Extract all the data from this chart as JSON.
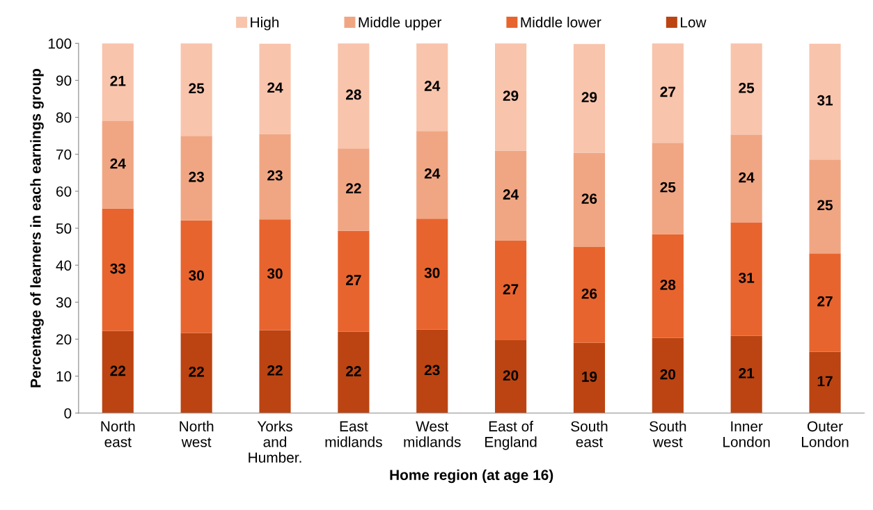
{
  "chart_data": {
    "type": "bar",
    "stacked": true,
    "xlabel": "Home region (at age 16)",
    "ylabel": "Percentage of learners in each earnings group",
    "categories": [
      "North\neast",
      "North\nwest",
      "Yorks\nand\nHumber.",
      "East\nmidlands",
      "West\nmidlands",
      "East of\nEngland",
      "South\neast",
      "South\nwest",
      "Inner\nLondon",
      "Outer\nLondon"
    ],
    "series": [
      {
        "name": "Low",
        "color": "#bb4412",
        "values": [
          22.2,
          21.7,
          22.4,
          22.0,
          22.6,
          19.7,
          19.0,
          20.3,
          20.9,
          16.6
        ],
        "value_labels": [
          "22",
          "22",
          "22",
          "22",
          "23",
          "20",
          "19",
          "20",
          "21",
          "17"
        ]
      },
      {
        "name": "Middle lower",
        "color": "#e8642e",
        "values": [
          33.1,
          30.4,
          30.0,
          27.3,
          30.0,
          26.9,
          25.9,
          28.1,
          30.7,
          26.6
        ],
        "value_labels": [
          "33",
          "30",
          "30",
          "27",
          "30",
          "27",
          "26",
          "28",
          "31",
          "27"
        ]
      },
      {
        "name": "Middle upper",
        "color": "#f0a683",
        "values": [
          23.7,
          22.9,
          23.1,
          22.3,
          23.7,
          24.4,
          25.5,
          24.7,
          23.6,
          25.4
        ],
        "value_labels": [
          "24",
          "23",
          "23",
          "22",
          "24",
          "24",
          "26",
          "25",
          "24",
          "25"
        ]
      },
      {
        "name": "High",
        "color": "#f8c4ac",
        "values": [
          21.0,
          25.0,
          24.4,
          28.4,
          23.7,
          29.0,
          29.4,
          26.9,
          24.8,
          31.3
        ],
        "value_labels": [
          "21",
          "25",
          "24",
          "28",
          "24",
          "29",
          "29",
          "27",
          "25",
          "31"
        ]
      }
    ],
    "ylim": [
      0,
      100
    ],
    "yticks": [
      0,
      10,
      20,
      30,
      40,
      50,
      60,
      70,
      80,
      90,
      100
    ],
    "grid": false,
    "legend": "top"
  }
}
